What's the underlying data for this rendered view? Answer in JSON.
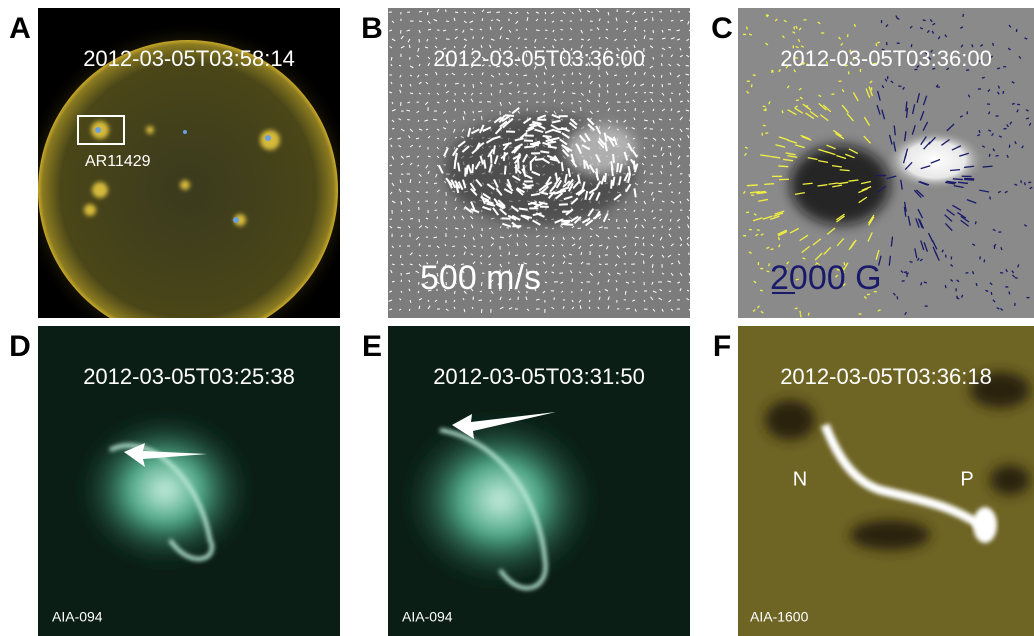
{
  "panels": [
    {
      "letter": "A",
      "timestamp": "2012-03-05T03:58:14",
      "labels": [
        "AR11429"
      ]
    },
    {
      "letter": "B",
      "timestamp": "2012-03-05T03:36:00",
      "labels": [
        "500 m/s"
      ]
    },
    {
      "letter": "C",
      "timestamp": "2012-03-05T03:36:00",
      "labels": [
        "2000 G"
      ]
    },
    {
      "letter": "D",
      "timestamp": "2012-03-05T03:25:38",
      "labels": [
        "AIA-094"
      ]
    },
    {
      "letter": "E",
      "timestamp": "2012-03-05T03:31:50",
      "labels": [
        "AIA-094"
      ]
    },
    {
      "letter": "F",
      "timestamp": "2012-03-05T03:36:18",
      "labels": [
        "N",
        "P",
        "AIA-1600"
      ]
    }
  ]
}
